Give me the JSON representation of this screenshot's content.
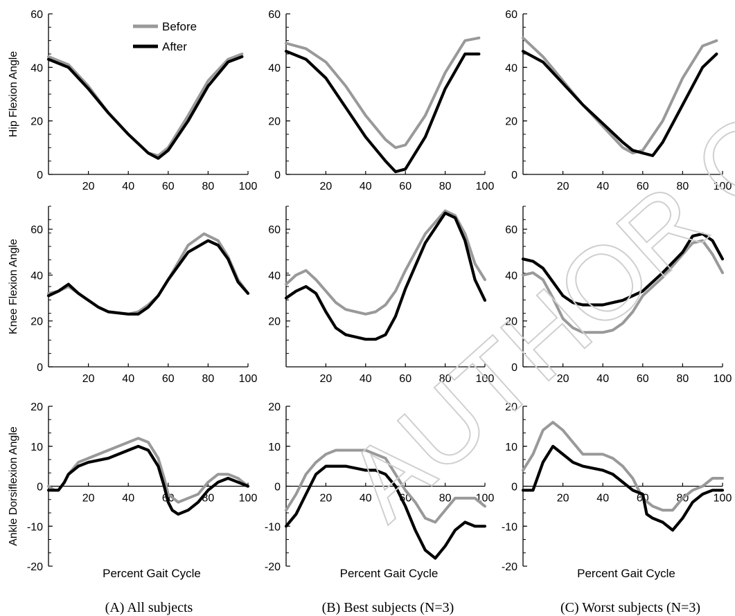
{
  "watermark": "AUTHOR CO",
  "captions": [
    "(A) All subjects",
    "(B) Best subjects (N=3)",
    "(C) Worst subjects (N=3)"
  ],
  "xlabel": "Percent Gait Cycle",
  "legend": [
    {
      "name": "Before",
      "color": "#999999"
    },
    {
      "name": "After",
      "color": "#000000"
    }
  ],
  "colors": {
    "before": "#999999",
    "after": "#000000"
  },
  "chart_data": [
    {
      "type": "line",
      "panel": "A",
      "ylabel": "Hip Flexion Angle",
      "xlim": [
        0,
        100
      ],
      "ylim": [
        0,
        60
      ],
      "xticks": [
        20,
        40,
        60,
        80,
        100
      ],
      "yticks": [
        0,
        20,
        40,
        60
      ],
      "legend": "top",
      "series": [
        {
          "name": "Before",
          "x": [
            0,
            10,
            20,
            30,
            40,
            50,
            55,
            60,
            70,
            80,
            90,
            97
          ],
          "y": [
            44,
            41,
            33,
            23,
            15,
            8,
            7,
            10,
            22,
            35,
            43,
            45
          ]
        },
        {
          "name": "After",
          "x": [
            0,
            10,
            20,
            30,
            40,
            50,
            55,
            60,
            70,
            80,
            90,
            97
          ],
          "y": [
            43,
            40,
            32,
            23,
            15,
            8,
            6,
            9,
            20,
            33,
            42,
            44
          ]
        }
      ]
    },
    {
      "type": "line",
      "panel": "B",
      "ylabel": "",
      "xlim": [
        0,
        100
      ],
      "ylim": [
        0,
        60
      ],
      "xticks": [
        20,
        40,
        60,
        80,
        100
      ],
      "yticks": [
        0,
        20,
        40,
        60
      ],
      "series": [
        {
          "name": "Before",
          "x": [
            0,
            10,
            20,
            30,
            40,
            50,
            55,
            60,
            70,
            80,
            90,
            97
          ],
          "y": [
            49,
            47,
            42,
            33,
            22,
            13,
            10,
            11,
            22,
            38,
            50,
            51
          ]
        },
        {
          "name": "After",
          "x": [
            0,
            10,
            20,
            30,
            40,
            50,
            55,
            60,
            70,
            80,
            90,
            97
          ],
          "y": [
            46,
            43,
            36,
            25,
            14,
            5,
            1,
            2,
            14,
            32,
            45,
            45
          ]
        }
      ]
    },
    {
      "type": "line",
      "panel": "C",
      "ylabel": "",
      "xlim": [
        0,
        100
      ],
      "ylim": [
        0,
        60
      ],
      "xticks": [
        20,
        40,
        60,
        80,
        100
      ],
      "yticks": [
        0,
        20,
        40,
        60
      ],
      "series": [
        {
          "name": "Before",
          "x": [
            0,
            10,
            20,
            30,
            40,
            50,
            55,
            60,
            70,
            80,
            90,
            97
          ],
          "y": [
            51,
            44,
            35,
            26,
            18,
            10,
            8,
            9,
            20,
            36,
            48,
            50
          ]
        },
        {
          "name": "After",
          "x": [
            0,
            10,
            20,
            30,
            40,
            50,
            55,
            60,
            65,
            70,
            80,
            90,
            97
          ],
          "y": [
            46,
            42,
            34,
            26,
            19,
            12,
            9,
            8,
            7,
            12,
            26,
            40,
            45
          ]
        }
      ]
    },
    {
      "type": "line",
      "panel": "A",
      "ylabel": "Knee Flexion Angle",
      "xlim": [
        0,
        100
      ],
      "ylim": [
        0,
        70
      ],
      "xticks": [
        20,
        40,
        60,
        80,
        100
      ],
      "yticks": [
        0,
        20,
        40,
        60
      ],
      "series": [
        {
          "name": "Before",
          "x": [
            0,
            5,
            10,
            15,
            20,
            25,
            30,
            40,
            45,
            50,
            55,
            60,
            70,
            78,
            85,
            90,
            95,
            100
          ],
          "y": [
            32,
            33,
            35,
            32,
            29,
            26,
            24,
            23,
            24,
            27,
            31,
            38,
            53,
            58,
            55,
            48,
            38,
            32
          ]
        },
        {
          "name": "After",
          "x": [
            0,
            5,
            10,
            15,
            20,
            25,
            30,
            40,
            45,
            50,
            55,
            60,
            70,
            80,
            85,
            90,
            95,
            100
          ],
          "y": [
            31,
            33,
            36,
            32,
            29,
            26,
            24,
            23,
            23,
            26,
            31,
            38,
            50,
            55,
            53,
            47,
            37,
            32
          ]
        }
      ]
    },
    {
      "type": "line",
      "panel": "B",
      "ylabel": "",
      "xlim": [
        0,
        100
      ],
      "ylim": [
        0,
        70
      ],
      "xticks": [
        20,
        40,
        60,
        80,
        100
      ],
      "yticks": [
        20,
        40,
        60
      ],
      "series": [
        {
          "name": "Before",
          "x": [
            0,
            5,
            10,
            15,
            20,
            25,
            30,
            40,
            45,
            50,
            55,
            60,
            70,
            80,
            85,
            90,
            95,
            100
          ],
          "y": [
            36,
            40,
            42,
            38,
            33,
            28,
            25,
            23,
            24,
            27,
            33,
            42,
            58,
            68,
            66,
            58,
            45,
            38
          ]
        },
        {
          "name": "After",
          "x": [
            0,
            5,
            10,
            15,
            20,
            25,
            30,
            40,
            45,
            50,
            55,
            60,
            70,
            80,
            85,
            90,
            95,
            100
          ],
          "y": [
            30,
            33,
            35,
            32,
            24,
            17,
            14,
            12,
            12,
            14,
            22,
            34,
            54,
            67,
            65,
            55,
            38,
            29
          ]
        }
      ]
    },
    {
      "type": "line",
      "panel": "C",
      "ylabel": "",
      "xlim": [
        0,
        100
      ],
      "ylim": [
        0,
        70
      ],
      "xticks": [
        20,
        40,
        60,
        80,
        100
      ],
      "yticks": [
        0,
        20,
        40,
        60
      ],
      "series": [
        {
          "name": "Before",
          "x": [
            0,
            5,
            10,
            15,
            20,
            25,
            30,
            40,
            45,
            50,
            55,
            60,
            70,
            80,
            85,
            90,
            95,
            100
          ],
          "y": [
            40,
            41,
            38,
            30,
            21,
            17,
            15,
            15,
            16,
            19,
            24,
            31,
            39,
            49,
            54,
            55,
            49,
            41
          ]
        },
        {
          "name": "After",
          "x": [
            0,
            5,
            10,
            15,
            20,
            25,
            30,
            40,
            45,
            50,
            55,
            60,
            70,
            80,
            85,
            90,
            95,
            100
          ],
          "y": [
            47,
            46,
            43,
            37,
            31,
            28,
            27,
            27,
            28,
            29,
            31,
            33,
            41,
            50,
            57,
            58,
            55,
            47
          ]
        }
      ]
    },
    {
      "type": "line",
      "panel": "A",
      "ylabel": "Ankle Dorsiflexion Angle",
      "xlim": [
        0,
        100
      ],
      "ylim": [
        -20,
        20
      ],
      "xticks": [
        20,
        40,
        60,
        80,
        100
      ],
      "yticks": [
        -20,
        -10,
        0,
        10,
        20
      ],
      "series": [
        {
          "name": "Before",
          "x": [
            0,
            3,
            5,
            8,
            10,
            15,
            20,
            30,
            40,
            45,
            50,
            55,
            58,
            60,
            65,
            70,
            75,
            80,
            85,
            90,
            95,
            100
          ],
          "y": [
            0,
            -1,
            -1,
            1,
            3,
            6,
            7,
            9,
            11,
            12,
            11,
            7,
            2,
            -2,
            -4,
            -3,
            -2,
            1,
            3,
            3,
            2,
            0
          ]
        },
        {
          "name": "After",
          "x": [
            0,
            3,
            5,
            8,
            10,
            15,
            20,
            30,
            40,
            45,
            50,
            55,
            58,
            60,
            62,
            65,
            70,
            75,
            80,
            85,
            90,
            95,
            100
          ],
          "y": [
            -1,
            -1,
            -1,
            1,
            3,
            5,
            6,
            7,
            9,
            10,
            9,
            5,
            0,
            -4,
            -6,
            -7,
            -6,
            -4,
            -1,
            1,
            2,
            1,
            0
          ]
        }
      ]
    },
    {
      "type": "line",
      "panel": "B",
      "ylabel": "",
      "xlim": [
        0,
        100
      ],
      "ylim": [
        -20,
        20
      ],
      "xticks": [
        20,
        40,
        60,
        80,
        100
      ],
      "yticks": [
        -20,
        -10,
        0,
        10,
        20
      ],
      "series": [
        {
          "name": "Before",
          "x": [
            0,
            5,
            10,
            15,
            20,
            25,
            30,
            40,
            45,
            50,
            55,
            60,
            65,
            70,
            75,
            80,
            85,
            90,
            95,
            100
          ],
          "y": [
            -6,
            -2,
            3,
            6,
            8,
            9,
            9,
            9,
            8,
            7,
            3,
            -1,
            -4,
            -8,
            -9,
            -6,
            -3,
            -3,
            -3,
            -5
          ]
        },
        {
          "name": "After",
          "x": [
            0,
            5,
            10,
            15,
            20,
            25,
            30,
            40,
            45,
            50,
            55,
            60,
            65,
            70,
            75,
            80,
            85,
            90,
            95,
            100
          ],
          "y": [
            -10,
            -7,
            -2,
            3,
            5,
            5,
            5,
            4,
            4,
            3,
            0,
            -5,
            -11,
            -16,
            -18,
            -15,
            -11,
            -9,
            -10,
            -10
          ]
        }
      ]
    },
    {
      "type": "line",
      "panel": "C",
      "ylabel": "",
      "xlim": [
        0,
        100
      ],
      "ylim": [
        -20,
        20
      ],
      "xticks": [
        20,
        40,
        60,
        80,
        100
      ],
      "yticks": [
        -20,
        -10,
        0,
        10,
        20
      ],
      "series": [
        {
          "name": "Before",
          "x": [
            0,
            5,
            10,
            15,
            20,
            25,
            30,
            40,
            45,
            50,
            55,
            60,
            65,
            70,
            75,
            80,
            85,
            90,
            95,
            100
          ],
          "y": [
            4,
            8,
            14,
            16,
            14,
            11,
            8,
            8,
            7,
            5,
            2,
            -3,
            -5,
            -6,
            -6,
            -3,
            -1,
            0,
            2,
            2
          ]
        },
        {
          "name": "After",
          "x": [
            0,
            5,
            10,
            15,
            20,
            25,
            30,
            40,
            45,
            50,
            55,
            60,
            62,
            65,
            70,
            75,
            80,
            85,
            90,
            95,
            100
          ],
          "y": [
            -1,
            -1,
            6,
            10,
            8,
            6,
            5,
            4,
            3,
            1,
            -1,
            -2,
            -7,
            -8,
            -9,
            -11,
            -8,
            -4,
            -2,
            -1,
            -1
          ]
        }
      ]
    }
  ]
}
